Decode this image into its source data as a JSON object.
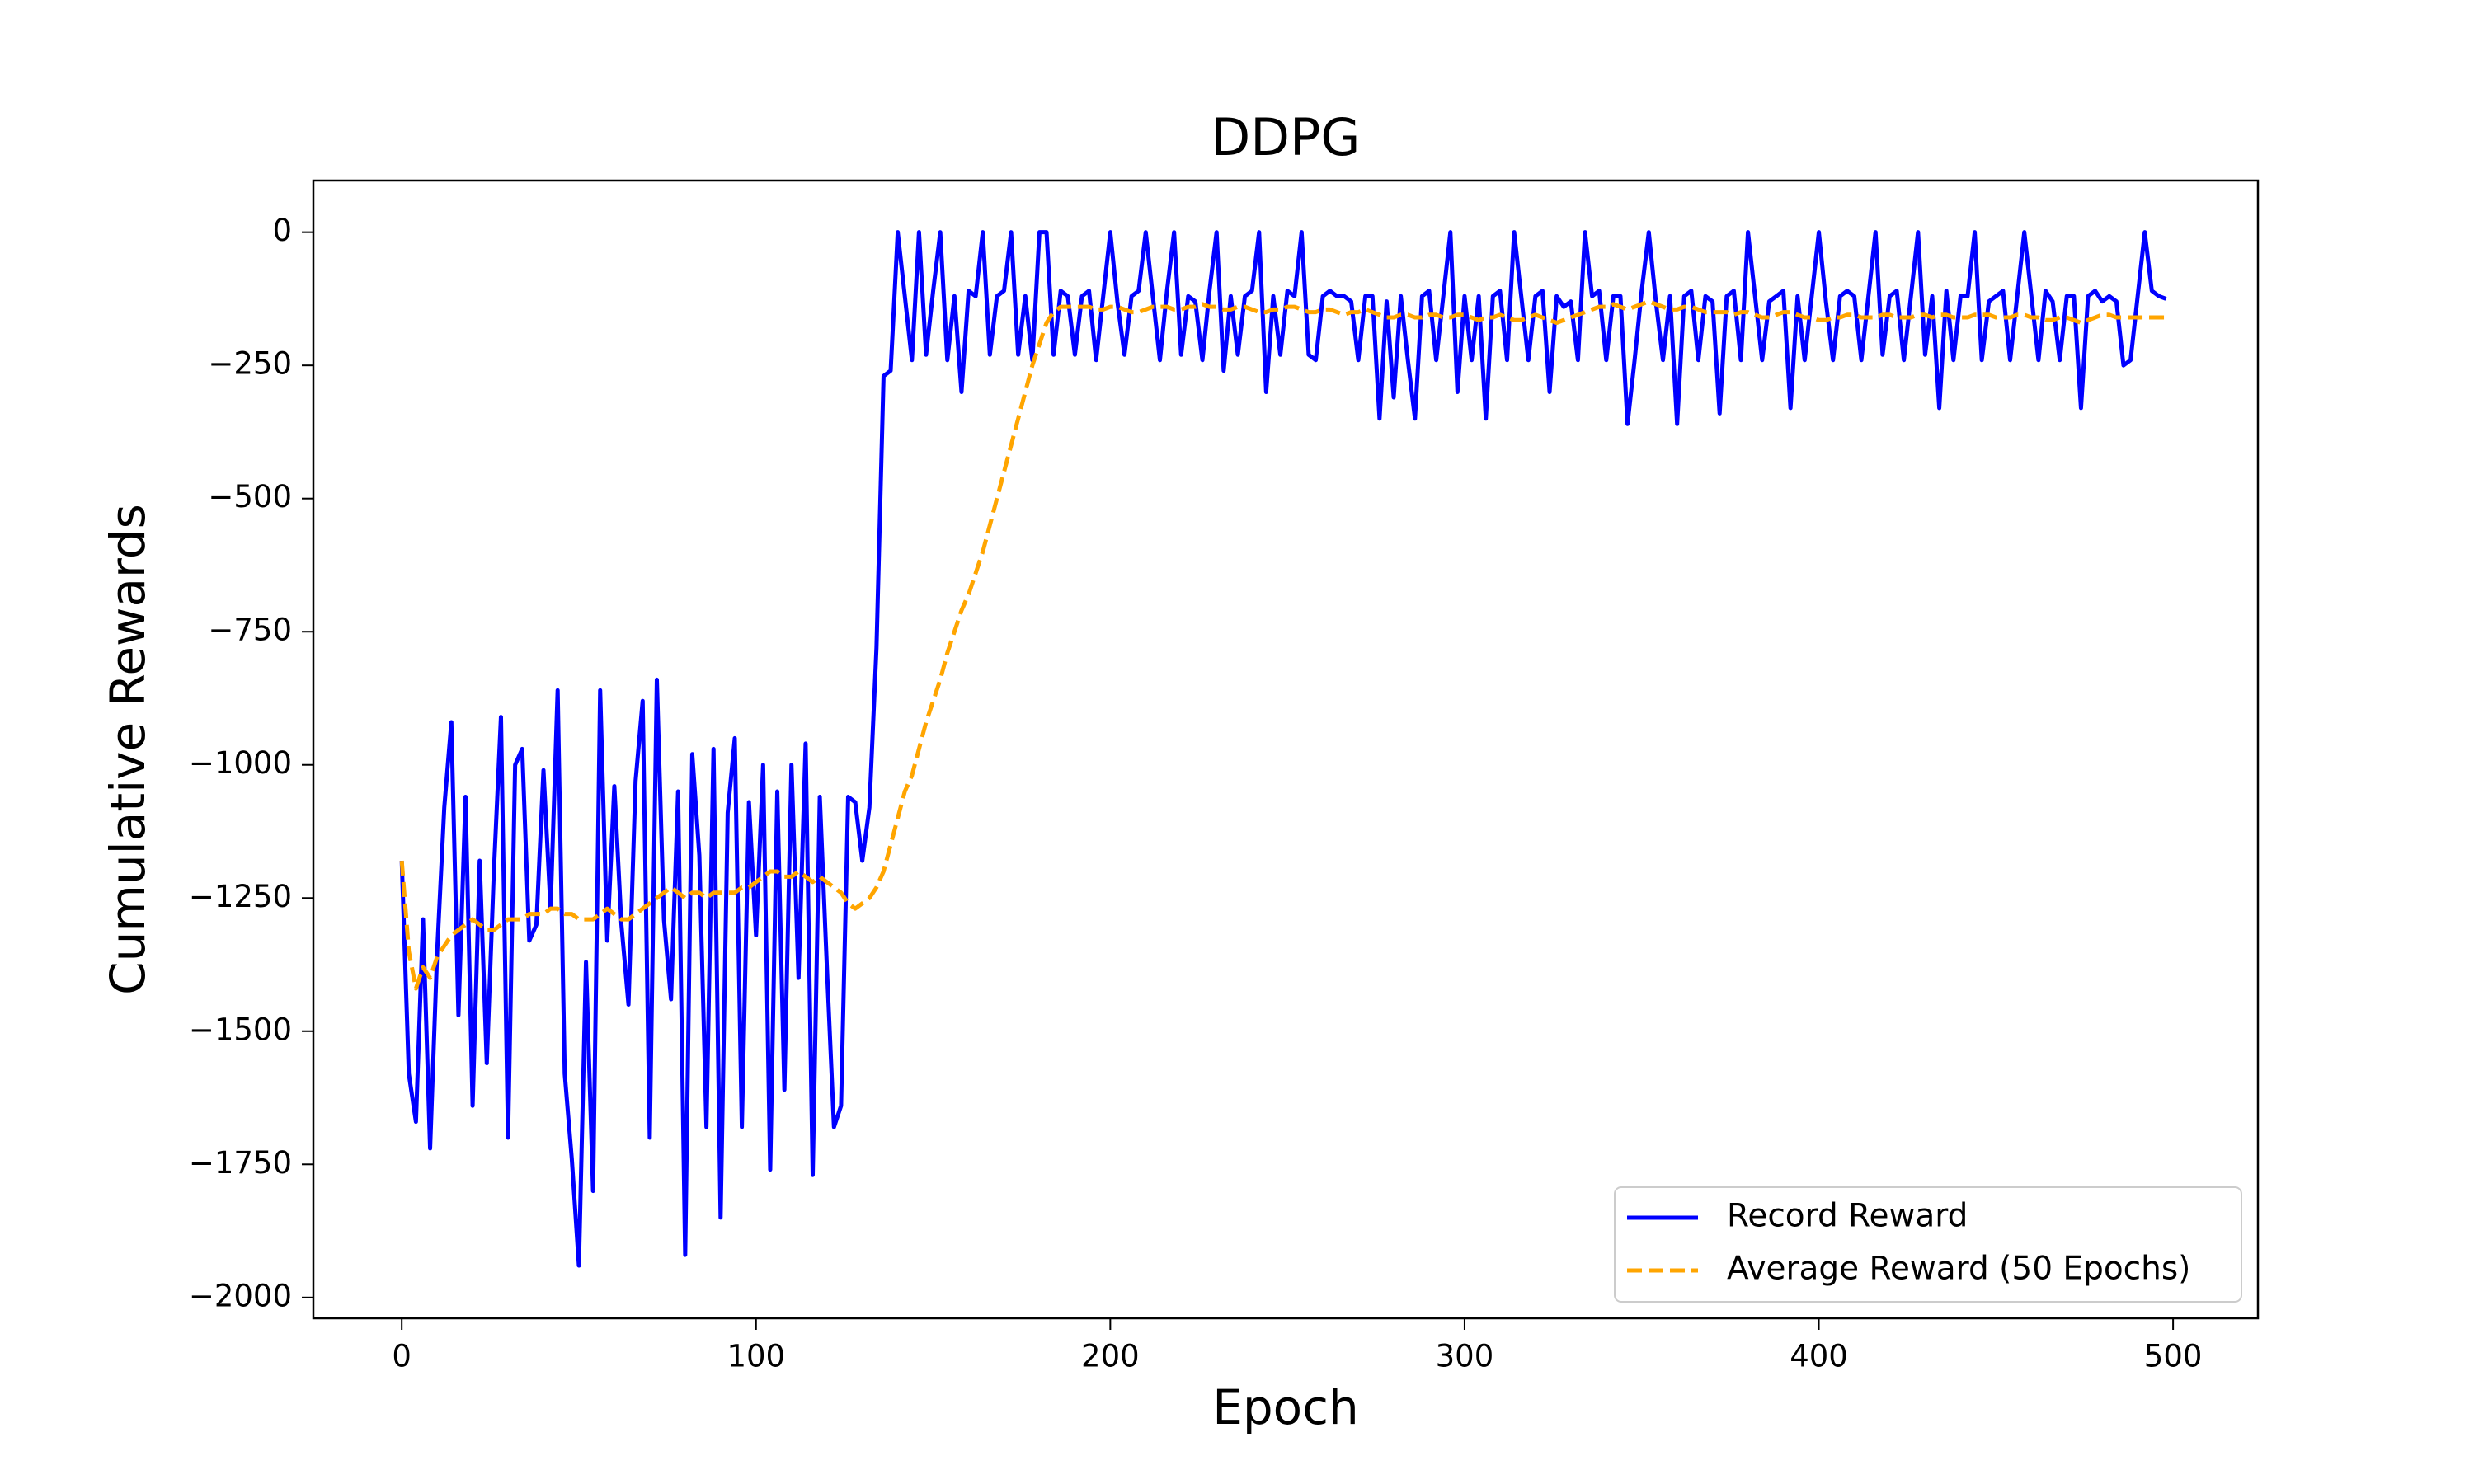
{
  "chart_data": {
    "type": "line",
    "title": "DDPG",
    "x_label": "Epoch",
    "y_label": "Cumulative Rewards",
    "x": [
      0,
      2,
      4,
      6,
      8,
      10,
      12,
      14,
      16,
      18,
      20,
      22,
      24,
      26,
      28,
      30,
      32,
      34,
      36,
      38,
      40,
      42,
      44,
      46,
      48,
      50,
      52,
      54,
      56,
      58,
      60,
      62,
      64,
      66,
      68,
      70,
      72,
      74,
      76,
      78,
      80,
      82,
      84,
      86,
      88,
      90,
      92,
      94,
      96,
      98,
      100,
      102,
      104,
      106,
      108,
      110,
      112,
      114,
      116,
      118,
      120,
      122,
      124,
      126,
      128,
      130,
      132,
      134,
      136,
      138,
      140,
      142,
      144,
      146,
      148,
      150,
      152,
      154,
      156,
      158,
      160,
      162,
      164,
      166,
      168,
      170,
      172,
      174,
      176,
      178,
      180,
      182,
      184,
      186,
      188,
      190,
      192,
      194,
      196,
      198,
      200,
      202,
      204,
      206,
      208,
      210,
      212,
      214,
      216,
      218,
      220,
      222,
      224,
      226,
      228,
      230,
      232,
      234,
      236,
      238,
      240,
      242,
      244,
      246,
      248,
      250,
      252,
      254,
      256,
      258,
      260,
      262,
      264,
      266,
      268,
      270,
      272,
      274,
      276,
      278,
      280,
      282,
      284,
      286,
      288,
      290,
      292,
      294,
      296,
      298,
      300,
      302,
      304,
      306,
      308,
      310,
      312,
      314,
      316,
      318,
      320,
      322,
      324,
      326,
      328,
      330,
      332,
      334,
      336,
      338,
      340,
      342,
      344,
      346,
      348,
      350,
      352,
      354,
      356,
      358,
      360,
      362,
      364,
      366,
      368,
      370,
      372,
      374,
      376,
      378,
      380,
      382,
      384,
      386,
      388,
      390,
      392,
      394,
      396,
      398,
      400,
      402,
      404,
      406,
      408,
      410,
      412,
      414,
      416,
      418,
      420,
      422,
      424,
      426,
      428,
      430,
      432,
      434,
      436,
      438,
      440,
      442,
      444,
      446,
      448,
      450,
      452,
      454,
      456,
      458,
      460,
      462,
      464,
      466,
      468,
      470,
      472,
      474,
      476,
      478,
      480,
      482,
      484,
      486,
      488,
      490,
      492,
      494,
      496,
      498
    ],
    "series": [
      {
        "name": "Record Reward",
        "color": "#0000ff",
        "dash": false,
        "values": [
          -1180,
          -1580,
          -1670,
          -1290,
          -1720,
          -1350,
          -1080,
          -920,
          -1470,
          -1060,
          -1640,
          -1180,
          -1560,
          -1200,
          -910,
          -1700,
          -1000,
          -970,
          -1330,
          -1300,
          -1010,
          -1270,
          -860,
          -1580,
          -1740,
          -1940,
          -1370,
          -1800,
          -860,
          -1330,
          -1040,
          -1300,
          -1450,
          -1030,
          -880,
          -1700,
          -840,
          -1290,
          -1440,
          -1050,
          -1920,
          -980,
          -1170,
          -1680,
          -970,
          -1850,
          -1090,
          -950,
          -1680,
          -1070,
          -1320,
          -1000,
          -1760,
          -1050,
          -1610,
          -1000,
          -1400,
          -960,
          -1770,
          -1060,
          -1380,
          -1680,
          -1640,
          -1060,
          -1070,
          -1180,
          -1080,
          -780,
          -270,
          -260,
          0,
          -120,
          -240,
          0,
          -230,
          -110,
          0,
          -240,
          -120,
          -300,
          -110,
          -120,
          0,
          -230,
          -120,
          -110,
          0,
          -230,
          -120,
          -240,
          0,
          0,
          -230,
          -110,
          -120,
          -230,
          -120,
          -110,
          -240,
          -120,
          0,
          -130,
          -230,
          -120,
          -110,
          0,
          -120,
          -240,
          -110,
          0,
          -230,
          -120,
          -130,
          -240,
          -110,
          0,
          -260,
          -120,
          -230,
          -120,
          -110,
          0,
          -300,
          -120,
          -230,
          -110,
          -120,
          0,
          -230,
          -240,
          -120,
          -110,
          -120,
          -120,
          -130,
          -240,
          -120,
          -120,
          -350,
          -130,
          -310,
          -120,
          -240,
          -350,
          -120,
          -110,
          -240,
          -120,
          0,
          -300,
          -120,
          -240,
          -120,
          -350,
          -120,
          -110,
          -240,
          0,
          -120,
          -240,
          -120,
          -110,
          -300,
          -120,
          -140,
          -130,
          -240,
          0,
          -120,
          -110,
          -240,
          -120,
          -120,
          -360,
          -240,
          -110,
          0,
          -130,
          -240,
          -120,
          -360,
          -120,
          -110,
          -240,
          -120,
          -130,
          -340,
          -120,
          -110,
          -240,
          0,
          -120,
          -240,
          -130,
          -120,
          -110,
          -330,
          -120,
          -240,
          -120,
          0,
          -130,
          -240,
          -120,
          -110,
          -120,
          -240,
          -120,
          0,
          -230,
          -120,
          -110,
          -240,
          -120,
          0,
          -230,
          -120,
          -330,
          -110,
          -240,
          -120,
          -120,
          0,
          -240,
          -130,
          -120,
          -110,
          -240,
          -120,
          0,
          -120,
          -240,
          -110,
          -130,
          -240,
          -120,
          -120,
          -330,
          -120,
          -110,
          -130,
          -120,
          -130,
          -250,
          -240,
          -120,
          0,
          -110,
          -120,
          -125
        ]
      },
      {
        "name": "Average Reward (50 Epochs)",
        "color": "#ffa500",
        "dash": true,
        "values": [
          -1180,
          -1350,
          -1420,
          -1380,
          -1400,
          -1360,
          -1340,
          -1320,
          -1310,
          -1300,
          -1290,
          -1300,
          -1310,
          -1310,
          -1300,
          -1290,
          -1290,
          -1290,
          -1280,
          -1280,
          -1280,
          -1270,
          -1270,
          -1280,
          -1280,
          -1290,
          -1290,
          -1290,
          -1280,
          -1270,
          -1280,
          -1290,
          -1290,
          -1280,
          -1270,
          -1260,
          -1250,
          -1240,
          -1230,
          -1240,
          -1250,
          -1240,
          -1240,
          -1250,
          -1240,
          -1240,
          -1240,
          -1240,
          -1230,
          -1230,
          -1220,
          -1210,
          -1200,
          -1200,
          -1210,
          -1210,
          -1200,
          -1210,
          -1220,
          -1210,
          -1220,
          -1230,
          -1240,
          -1260,
          -1270,
          -1260,
          -1250,
          -1230,
          -1200,
          -1150,
          -1100,
          -1050,
          -1020,
          -970,
          -920,
          -880,
          -840,
          -790,
          -750,
          -710,
          -680,
          -640,
          -600,
          -550,
          -500,
          -450,
          -400,
          -350,
          -300,
          -250,
          -210,
          -170,
          -150,
          -140,
          -140,
          -140,
          -140,
          -140,
          -145,
          -145,
          -140,
          -140,
          -145,
          -150,
          -150,
          -145,
          -140,
          -140,
          -140,
          -145,
          -145,
          -140,
          -140,
          -135,
          -140,
          -140,
          -145,
          -145,
          -140,
          -140,
          -145,
          -150,
          -150,
          -145,
          -145,
          -140,
          -140,
          -145,
          -150,
          -150,
          -145,
          -145,
          -150,
          -155,
          -150,
          -150,
          -145,
          -150,
          -155,
          -160,
          -160,
          -155,
          -155,
          -160,
          -160,
          -155,
          -155,
          -160,
          -160,
          -155,
          -155,
          -160,
          -165,
          -160,
          -160,
          -155,
          -160,
          -165,
          -165,
          -160,
          -155,
          -160,
          -165,
          -170,
          -165,
          -160,
          -155,
          -150,
          -145,
          -140,
          -140,
          -135,
          -140,
          -145,
          -140,
          -135,
          -130,
          -135,
          -140,
          -145,
          -145,
          -140,
          -140,
          -145,
          -150,
          -150,
          -150,
          -150,
          -155,
          -150,
          -150,
          -155,
          -160,
          -160,
          -155,
          -150,
          -150,
          -155,
          -160,
          -160,
          -165,
          -165,
          -160,
          -160,
          -155,
          -155,
          -160,
          -160,
          -160,
          -155,
          -155,
          -160,
          -160,
          -160,
          -155,
          -155,
          -160,
          -155,
          -155,
          -160,
          -160,
          -160,
          -155,
          -155,
          -155,
          -160,
          -160,
          -160,
          -155,
          -155,
          -160,
          -160,
          -165,
          -165,
          -160,
          -160,
          -165,
          -170,
          -165,
          -160,
          -155,
          -155,
          -160,
          -160,
          -160,
          -160,
          -160,
          -160,
          -160,
          -160
        ]
      }
    ],
    "xlim": [
      -24.95,
      523.95
    ],
    "xticks": [
      0,
      100,
      200,
      300,
      400,
      500
    ],
    "ylim": [
      -2039,
      97
    ],
    "yticks": [
      {
        "value": 0,
        "label": "0"
      },
      {
        "value": -250,
        "label": "−250"
      },
      {
        "value": -500,
        "label": "−500"
      },
      {
        "value": -750,
        "label": "−750"
      },
      {
        "value": -1000,
        "label": "−1000"
      },
      {
        "value": -1250,
        "label": "−1250"
      },
      {
        "value": -1500,
        "label": "−1500"
      },
      {
        "value": -1750,
        "label": "−1750"
      },
      {
        "value": -2000,
        "label": "−2000"
      }
    ],
    "grid": false,
    "legend": "lower right"
  }
}
